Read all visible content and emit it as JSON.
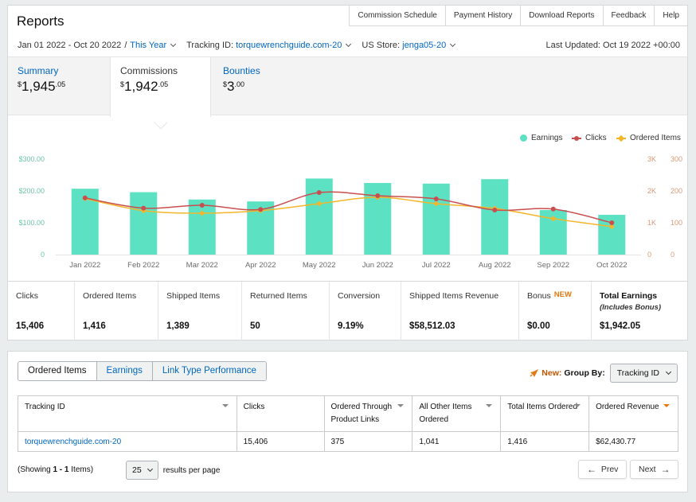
{
  "header": {
    "title": "Reports",
    "nav": [
      "Commission Schedule",
      "Payment History",
      "Download Reports",
      "Feedback",
      "Help"
    ]
  },
  "filters": {
    "date_range": "Jan 01 2022 - Oct 20 2022",
    "separator": "/",
    "period": "This Year",
    "tracking_label": "Tracking ID:",
    "tracking_value": "torquewrenchguide.com-20",
    "store_label": "US Store:",
    "store_value": "jenga05-20",
    "last_updated": "Last Updated: Oct 19 2022 +00:00"
  },
  "summary_tabs": [
    {
      "label": "Summary",
      "currency": "$",
      "whole": "1,945",
      "cents": ".05"
    },
    {
      "label": "Commissions",
      "currency": "$",
      "whole": "1,942",
      "cents": ".05"
    },
    {
      "label": "Bounties",
      "currency": "$",
      "whole": "3",
      "cents": ".00"
    }
  ],
  "chart_data": {
    "type": "bar",
    "categories": [
      "Jan 2022",
      "Feb 2022",
      "Mar 2022",
      "Apr 2022",
      "May 2022",
      "Jun 2022",
      "Jul 2022",
      "Aug 2022",
      "Sep 2022",
      "Oct 2022"
    ],
    "left_axis": {
      "ticks": [
        "$300.00",
        "$200.00",
        "$100.00",
        "0"
      ],
      "range": [
        0,
        300
      ]
    },
    "right_axis": {
      "ticks": [
        "3K",
        "2K",
        "1K",
        "0"
      ],
      "tick_values": [
        300,
        200,
        100,
        0
      ],
      "range": [
        0,
        300
      ]
    },
    "series": [
      {
        "name": "Earnings",
        "type": "bar",
        "axis": "left",
        "color": "#5ce1c2",
        "values": [
          207,
          196,
          173,
          167,
          239,
          225,
          223,
          237,
          140,
          125
        ]
      },
      {
        "name": "Clicks",
        "type": "line",
        "axis": "right",
        "color": "#c94f4f",
        "values": [
          178,
          146,
          155,
          142,
          195,
          185,
          175,
          140,
          143,
          100
        ]
      },
      {
        "name": "Ordered Items",
        "type": "line",
        "axis": "right",
        "color": "#f3b62a",
        "values": [
          176,
          138,
          130,
          138,
          160,
          180,
          160,
          145,
          113,
          88
        ]
      }
    ],
    "legend": "top-right",
    "grid": false
  },
  "metrics": [
    {
      "label": "Clicks",
      "value": "15,406"
    },
    {
      "label": "Ordered Items",
      "value": "1,416"
    },
    {
      "label": "Shipped Items",
      "value": "1,389"
    },
    {
      "label": "Returned Items",
      "value": "50"
    },
    {
      "label": "Conversion",
      "value": "9.19%"
    },
    {
      "label": "Shipped Items Revenue",
      "value": "$58,512.03"
    },
    {
      "label": "Bonus",
      "badge": "NEW",
      "value": "$0.00"
    },
    {
      "label": "Total Earnings",
      "sub": "(Includes Bonus)",
      "value": "$1,942.05"
    }
  ],
  "report_tabs": [
    "Ordered Items",
    "Earnings",
    "Link Type Performance"
  ],
  "groupby": {
    "new_label": "New:",
    "label": "Group By:",
    "value": "Tracking ID"
  },
  "table": {
    "headers": [
      "Tracking ID",
      "Clicks",
      "Ordered Through Product Links",
      "All Other Items Ordered",
      "Total Items Ordered",
      "Ordered Revenue"
    ],
    "rows": [
      [
        "torquewrenchguide.com-20",
        "15,406",
        "375",
        "1,041",
        "1,416",
        "$62,430.77"
      ]
    ]
  },
  "pagination": {
    "showing_prefix": "(Showing ",
    "showing_range": "1 - 1",
    "showing_suffix": " Items)",
    "per_page_value": "25",
    "per_page_label": "results per page",
    "prev": "Prev",
    "next": "Next"
  }
}
